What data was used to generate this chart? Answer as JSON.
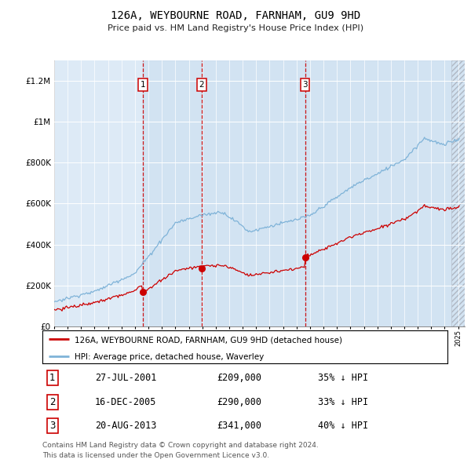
{
  "title": "126A, WEYBOURNE ROAD, FARNHAM, GU9 9HD",
  "subtitle": "Price paid vs. HM Land Registry's House Price Index (HPI)",
  "legend_line1": "126A, WEYBOURNE ROAD, FARNHAM, GU9 9HD (detached house)",
  "legend_line2": "HPI: Average price, detached house, Waverley",
  "footer1": "Contains HM Land Registry data © Crown copyright and database right 2024.",
  "footer2": "This data is licensed under the Open Government Licence v3.0.",
  "transactions": [
    {
      "num": "1",
      "date": "27-JUL-2001",
      "price": "£209,000",
      "pct": "35% ↓ HPI",
      "year": 2001.57,
      "price_val": 209000
    },
    {
      "num": "2",
      "date": "16-DEC-2005",
      "price": "£290,000",
      "pct": "33% ↓ HPI",
      "year": 2005.96,
      "price_val": 290000
    },
    {
      "num": "3",
      "date": "20-AUG-2013",
      "price": "£341,000",
      "pct": "40% ↓ HPI",
      "year": 2013.63,
      "price_val": 341000
    }
  ],
  "hpi_color": "#7fb3d8",
  "price_color": "#cc0000",
  "bg_color": "#ddeaf6",
  "shade_color": "#c8ddf0",
  "ylim_max": 1300000,
  "xlim_start": 1995.0,
  "xlim_end": 2025.5,
  "table_font": "monospace"
}
